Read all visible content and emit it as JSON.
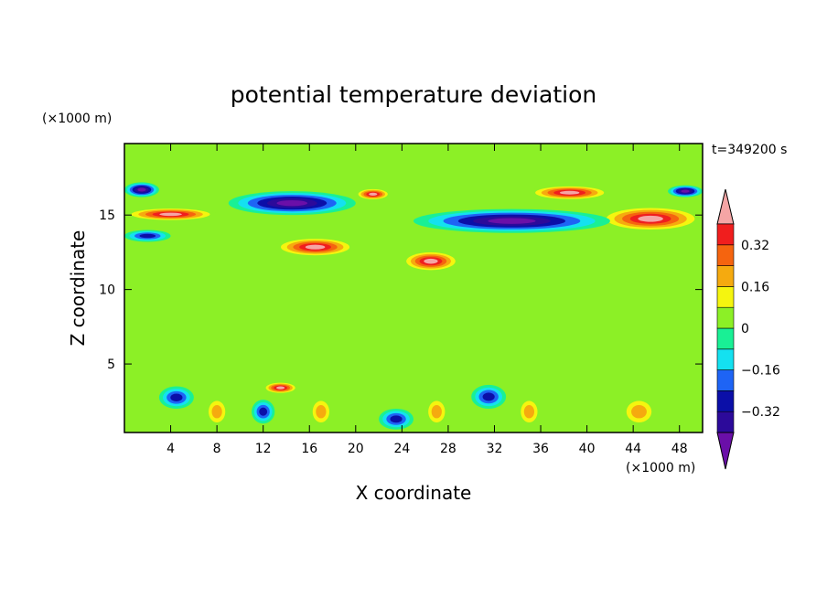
{
  "chart_data": {
    "type": "heatmap",
    "title": "potential temperature deviation",
    "xlabel": "X coordinate",
    "ylabel": "Z coordinate",
    "x_unit": "(×1000 m)",
    "y_unit": "(×1000 m)",
    "time_label": "t=349200 s",
    "xlim": [
      0,
      50
    ],
    "ylim": [
      0.4,
      19.8
    ],
    "x_ticks": [
      4,
      8,
      12,
      16,
      20,
      24,
      28,
      32,
      36,
      40,
      44,
      48
    ],
    "y_ticks": [
      5,
      10,
      15
    ],
    "colorbar": {
      "levels": [
        -0.4,
        -0.32,
        -0.24,
        -0.16,
        -0.08,
        0,
        0.08,
        0.16,
        0.24,
        0.32,
        0.4
      ],
      "labels": [
        "0.32",
        "0.16",
        "0",
        "−0.16",
        "−0.32"
      ],
      "label_values": [
        0.32,
        0.16,
        0,
        -0.16,
        -0.32
      ],
      "colors": [
        "#6a0fa8",
        "#2c0a9a",
        "#0b0fa8",
        "#1e64f5",
        "#14e1f0",
        "#19f095",
        "#8cf026",
        "#f5f50f",
        "#f5aa0f",
        "#f5640f",
        "#f01e1e",
        "#f5a5a5"
      ],
      "extend": "both"
    },
    "features": [
      {
        "x": [
          0,
          50
        ],
        "z": [
          0.4,
          19.8
        ],
        "level": 0.04,
        "note": "background"
      },
      {
        "x": [
          0,
          8
        ],
        "z": [
          14.6,
          15.5
        ],
        "level": 0.5
      },
      {
        "x": [
          41,
          50
        ],
        "z": [
          13.9,
          15.6
        ],
        "level": 0.5
      },
      {
        "x": [
          9,
          20
        ],
        "z": [
          15.0,
          16.6
        ],
        "level": -0.45
      },
      {
        "x": [
          25,
          42
        ],
        "z": [
          13.8,
          15.4
        ],
        "level": -0.45
      },
      {
        "x": [
          0,
          4
        ],
        "z": [
          13.2,
          14.0
        ],
        "level": -0.3
      },
      {
        "x": [
          0,
          3
        ],
        "z": [
          16.2,
          17.2
        ],
        "level": -0.45
      },
      {
        "x": [
          47,
          50
        ],
        "z": [
          16.2,
          17.0
        ],
        "level": -0.45
      },
      {
        "x": [
          20,
          23
        ],
        "z": [
          16.0,
          16.8
        ],
        "level": 0.45
      },
      {
        "x": [
          35,
          42
        ],
        "z": [
          16.0,
          17.0
        ],
        "level": 0.45
      },
      {
        "x": [
          13,
          20
        ],
        "z": [
          12.2,
          13.5
        ],
        "level": 0.45
      },
      {
        "x": [
          24,
          29
        ],
        "z": [
          11.2,
          12.6
        ],
        "level": 0.45
      },
      {
        "x": [
          12,
          15
        ],
        "z": [
          3.0,
          3.8
        ],
        "level": 0.45
      },
      {
        "x": [
          3,
          6
        ],
        "z": [
          2.0,
          3.5
        ],
        "level": -0.35
      },
      {
        "x": [
          11,
          13
        ],
        "z": [
          1.0,
          2.6
        ],
        "level": -0.35
      },
      {
        "x": [
          22,
          25
        ],
        "z": [
          0.6,
          2.0
        ],
        "level": -0.35
      },
      {
        "x": [
          30,
          33
        ],
        "z": [
          2.0,
          3.6
        ],
        "level": -0.35
      },
      {
        "x": [
          7,
          9
        ],
        "z": [
          0.8,
          2.8
        ],
        "level": 0.2
      },
      {
        "x": [
          16,
          18
        ],
        "z": [
          0.8,
          2.8
        ],
        "level": 0.2
      },
      {
        "x": [
          26,
          28
        ],
        "z": [
          0.8,
          2.8
        ],
        "level": 0.2
      },
      {
        "x": [
          34,
          36
        ],
        "z": [
          0.8,
          2.8
        ],
        "level": 0.2
      },
      {
        "x": [
          43,
          46
        ],
        "z": [
          0.8,
          2.8
        ],
        "level": 0.2
      }
    ]
  }
}
